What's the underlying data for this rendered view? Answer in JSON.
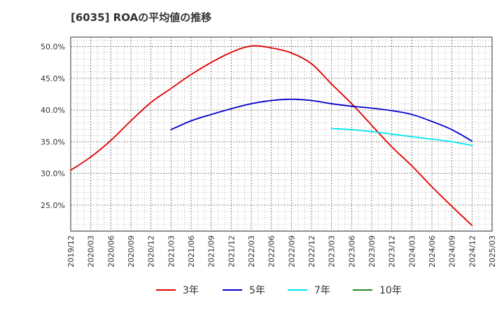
{
  "chart_data": {
    "type": "line",
    "title": "[6035]  ROAの平均値の推移",
    "x": [
      "2019/12",
      "2020/03",
      "2020/06",
      "2020/09",
      "2020/12",
      "2021/03",
      "2021/06",
      "2021/09",
      "2021/12",
      "2022/03",
      "2022/06",
      "2022/09",
      "2022/12",
      "2023/03",
      "2023/06",
      "2023/09",
      "2023/12",
      "2024/03",
      "2024/06",
      "2024/09",
      "2024/12",
      "2025/03"
    ],
    "ylim": [
      20.9,
      51.5
    ],
    "yticks": [
      25,
      30,
      35,
      40,
      45,
      50
    ],
    "ytick_labels": [
      "25.0%",
      "30.0%",
      "35.0%",
      "40.0%",
      "45.0%",
      "50.0%"
    ],
    "grid": true,
    "legend_position": "bottom",
    "series": [
      {
        "name": "3年",
        "color": "#e00000",
        "values": [
          30.5,
          32.6,
          35.2,
          38.3,
          41.2,
          43.4,
          45.6,
          47.5,
          49.1,
          50.1,
          49.8,
          49.0,
          47.3,
          44.1,
          41.0,
          37.6,
          34.2,
          31.2,
          27.9,
          24.8,
          21.8,
          null
        ]
      },
      {
        "name": "5年",
        "color": "#0000cc",
        "values": [
          null,
          null,
          null,
          null,
          null,
          36.9,
          38.3,
          39.3,
          40.2,
          41.0,
          41.5,
          41.7,
          41.5,
          41.0,
          40.6,
          40.3,
          39.9,
          39.3,
          38.2,
          36.9,
          35.1,
          null
        ]
      },
      {
        "name": "7年",
        "color": "#00e5ee",
        "values": [
          null,
          null,
          null,
          null,
          null,
          null,
          null,
          null,
          null,
          null,
          null,
          null,
          null,
          37.1,
          36.9,
          36.6,
          36.2,
          35.8,
          35.4,
          35.0,
          34.4,
          null
        ]
      },
      {
        "name": "10年",
        "color": "#228b22",
        "values": [
          null,
          null,
          null,
          null,
          null,
          null,
          null,
          null,
          null,
          null,
          null,
          null,
          null,
          null,
          null,
          null,
          null,
          null,
          null,
          null,
          null,
          null
        ]
      }
    ]
  }
}
